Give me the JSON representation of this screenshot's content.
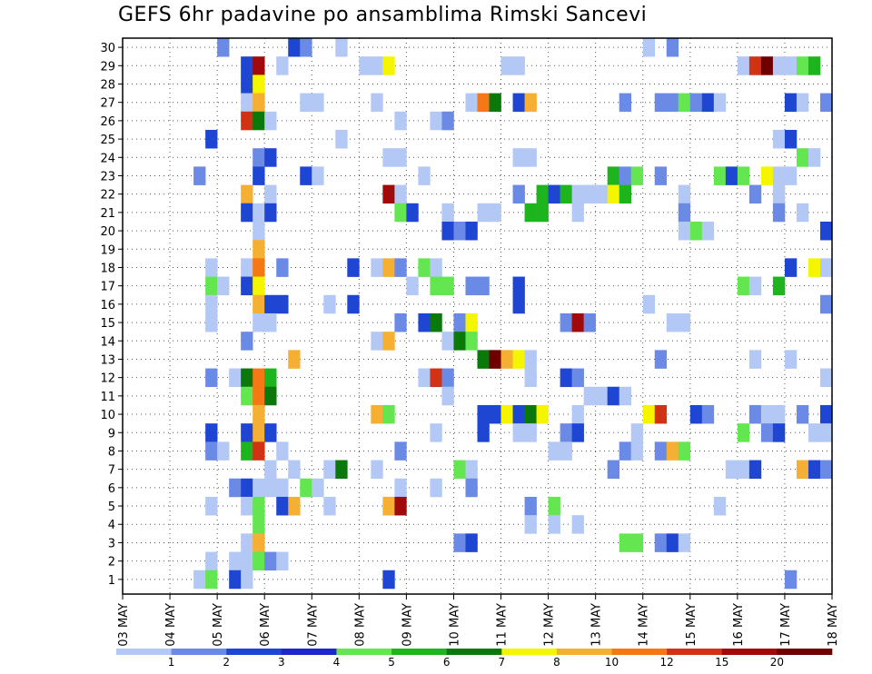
{
  "title": "GEFS 6hr padavine po ansamblima Rimski Sancevi",
  "chart_data": {
    "type": "heatmap",
    "title": "GEFS 6hr padavine po ansamblima Rimski Sancevi",
    "xlabel": "",
    "ylabel": "",
    "x_tick_labels": [
      "03 MAY",
      "04 MAY",
      "05 MAY",
      "06 MAY",
      "07 MAY",
      "08 MAY",
      "09 MAY",
      "10 MAY",
      "11 MAY",
      "12 MAY",
      "13 MAY",
      "14 MAY",
      "15 MAY",
      "16 MAY",
      "17 MAY",
      "18 MAY"
    ],
    "y_tick_labels": [
      "1",
      "2",
      "3",
      "4",
      "5",
      "6",
      "7",
      "8",
      "9",
      "10",
      "11",
      "12",
      "13",
      "14",
      "15",
      "16",
      "17",
      "18",
      "19",
      "20",
      "21",
      "22",
      "23",
      "24",
      "25",
      "26",
      "27",
      "28",
      "29",
      "30"
    ],
    "grid": true,
    "steps_per_day": 4,
    "n_steps": 60,
    "n_members": 30,
    "colorbar": {
      "labels": [
        "1",
        "2",
        "3",
        "4",
        "5",
        "6",
        "7",
        "8",
        "10",
        "12",
        "15",
        "20"
      ],
      "colors": [
        "#b4c8f5",
        "#6a8ae6",
        "#1e46d2",
        "#1e28c8",
        "#64e650",
        "#1eb41e",
        "#0a780a",
        "#f5f500",
        "#f5af32",
        "#f57814",
        "#d23214",
        "#a00a0a",
        "#6e0000"
      ]
    },
    "cells": [
      [
        30,
        8,
        2
      ],
      [
        30,
        14,
        3
      ],
      [
        30,
        15,
        2
      ],
      [
        30,
        18,
        1
      ],
      [
        30,
        44,
        1
      ],
      [
        30,
        46,
        2
      ],
      [
        29,
        10,
        3
      ],
      [
        29,
        11,
        12
      ],
      [
        29,
        13,
        1
      ],
      [
        29,
        20,
        1
      ],
      [
        29,
        21,
        1
      ],
      [
        29,
        22,
        8
      ],
      [
        29,
        32,
        1
      ],
      [
        29,
        33,
        1
      ],
      [
        29,
        52,
        1
      ],
      [
        29,
        53,
        11
      ],
      [
        29,
        54,
        13
      ],
      [
        29,
        55,
        1
      ],
      [
        29,
        56,
        1
      ],
      [
        29,
        57,
        5
      ],
      [
        29,
        58,
        6
      ],
      [
        28,
        10,
        3
      ],
      [
        28,
        11,
        8
      ],
      [
        27,
        10,
        1
      ],
      [
        27,
        11,
        9
      ],
      [
        27,
        15,
        1
      ],
      [
        27,
        16,
        1
      ],
      [
        27,
        21,
        1
      ],
      [
        27,
        29,
        1
      ],
      [
        27,
        30,
        10
      ],
      [
        27,
        31,
        7
      ],
      [
        27,
        33,
        3
      ],
      [
        27,
        34,
        9
      ],
      [
        27,
        42,
        2
      ],
      [
        27,
        45,
        2
      ],
      [
        27,
        46,
        2
      ],
      [
        27,
        47,
        5
      ],
      [
        27,
        48,
        2
      ],
      [
        27,
        49,
        3
      ],
      [
        27,
        50,
        1
      ],
      [
        27,
        56,
        3
      ],
      [
        27,
        57,
        1
      ],
      [
        27,
        59,
        2
      ],
      [
        26,
        10,
        11
      ],
      [
        26,
        11,
        7
      ],
      [
        26,
        12,
        1
      ],
      [
        26,
        23,
        1
      ],
      [
        26,
        26,
        1
      ],
      [
        26,
        27,
        2
      ],
      [
        25,
        7,
        3
      ],
      [
        25,
        18,
        1
      ],
      [
        25,
        55,
        1
      ],
      [
        25,
        56,
        3
      ],
      [
        24,
        11,
        2
      ],
      [
        24,
        12,
        3
      ],
      [
        24,
        22,
        1
      ],
      [
        24,
        23,
        1
      ],
      [
        24,
        33,
        1
      ],
      [
        24,
        34,
        1
      ],
      [
        24,
        57,
        5
      ],
      [
        24,
        58,
        1
      ],
      [
        23,
        6,
        2
      ],
      [
        23,
        11,
        3
      ],
      [
        23,
        15,
        3
      ],
      [
        23,
        16,
        1
      ],
      [
        23,
        25,
        1
      ],
      [
        23,
        41,
        6
      ],
      [
        23,
        42,
        2
      ],
      [
        23,
        43,
        5
      ],
      [
        23,
        45,
        2
      ],
      [
        23,
        50,
        5
      ],
      [
        23,
        51,
        3
      ],
      [
        23,
        52,
        5
      ],
      [
        23,
        54,
        8
      ],
      [
        23,
        55,
        1
      ],
      [
        23,
        56,
        1
      ],
      [
        22,
        10,
        9
      ],
      [
        22,
        12,
        1
      ],
      [
        22,
        22,
        12
      ],
      [
        22,
        23,
        1
      ],
      [
        22,
        33,
        2
      ],
      [
        22,
        35,
        6
      ],
      [
        22,
        36,
        3
      ],
      [
        22,
        37,
        6
      ],
      [
        22,
        38,
        1
      ],
      [
        22,
        39,
        1
      ],
      [
        22,
        40,
        1
      ],
      [
        22,
        41,
        8
      ],
      [
        22,
        42,
        6
      ],
      [
        22,
        47,
        1
      ],
      [
        22,
        53,
        2
      ],
      [
        22,
        55,
        1
      ],
      [
        21,
        10,
        3
      ],
      [
        21,
        11,
        1
      ],
      [
        21,
        12,
        3
      ],
      [
        21,
        23,
        5
      ],
      [
        21,
        24,
        3
      ],
      [
        21,
        27,
        1
      ],
      [
        21,
        30,
        1
      ],
      [
        21,
        31,
        1
      ],
      [
        21,
        34,
        6
      ],
      [
        21,
        35,
        6
      ],
      [
        21,
        38,
        1
      ],
      [
        21,
        47,
        2
      ],
      [
        21,
        55,
        2
      ],
      [
        21,
        57,
        1
      ],
      [
        20,
        11,
        1
      ],
      [
        20,
        27,
        3
      ],
      [
        20,
        28,
        2
      ],
      [
        20,
        29,
        3
      ],
      [
        20,
        47,
        1
      ],
      [
        20,
        48,
        5
      ],
      [
        20,
        49,
        1
      ],
      [
        20,
        59,
        3
      ],
      [
        19,
        11,
        9
      ],
      [
        18,
        7,
        1
      ],
      [
        18,
        10,
        1
      ],
      [
        18,
        11,
        10
      ],
      [
        18,
        13,
        2
      ],
      [
        18,
        19,
        3
      ],
      [
        18,
        21,
        1
      ],
      [
        18,
        22,
        9
      ],
      [
        18,
        23,
        2
      ],
      [
        18,
        25,
        5
      ],
      [
        18,
        26,
        1
      ],
      [
        18,
        56,
        3
      ],
      [
        18,
        58,
        8
      ],
      [
        18,
        59,
        1
      ],
      [
        17,
        7,
        5
      ],
      [
        17,
        8,
        1
      ],
      [
        17,
        10,
        3
      ],
      [
        17,
        11,
        8
      ],
      [
        17,
        24,
        1
      ],
      [
        17,
        26,
        5
      ],
      [
        17,
        27,
        5
      ],
      [
        17,
        29,
        2
      ],
      [
        17,
        30,
        2
      ],
      [
        17,
        33,
        3
      ],
      [
        17,
        52,
        5
      ],
      [
        17,
        53,
        1
      ],
      [
        17,
        55,
        6
      ],
      [
        16,
        7,
        1
      ],
      [
        16,
        11,
        9
      ],
      [
        16,
        12,
        3
      ],
      [
        16,
        13,
        3
      ],
      [
        16,
        17,
        1
      ],
      [
        16,
        19,
        3
      ],
      [
        16,
        33,
        3
      ],
      [
        16,
        44,
        1
      ],
      [
        16,
        59,
        2
      ],
      [
        15,
        7,
        1
      ],
      [
        15,
        11,
        1
      ],
      [
        15,
        12,
        1
      ],
      [
        15,
        23,
        2
      ],
      [
        15,
        25,
        3
      ],
      [
        15,
        26,
        7
      ],
      [
        15,
        28,
        2
      ],
      [
        15,
        29,
        8
      ],
      [
        15,
        37,
        2
      ],
      [
        15,
        38,
        12
      ],
      [
        15,
        39,
        2
      ],
      [
        15,
        46,
        1
      ],
      [
        15,
        47,
        1
      ],
      [
        14,
        10,
        2
      ],
      [
        14,
        21,
        1
      ],
      [
        14,
        22,
        9
      ],
      [
        14,
        27,
        1
      ],
      [
        14,
        28,
        7
      ],
      [
        14,
        29,
        5
      ],
      [
        13,
        14,
        9
      ],
      [
        13,
        30,
        7
      ],
      [
        13,
        31,
        13
      ],
      [
        13,
        32,
        9
      ],
      [
        13,
        33,
        8
      ],
      [
        13,
        34,
        1
      ],
      [
        13,
        45,
        2
      ],
      [
        13,
        53,
        1
      ],
      [
        13,
        56,
        1
      ],
      [
        12,
        7,
        2
      ],
      [
        12,
        9,
        1
      ],
      [
        12,
        10,
        7
      ],
      [
        12,
        11,
        10
      ],
      [
        12,
        12,
        6
      ],
      [
        12,
        25,
        1
      ],
      [
        12,
        26,
        11
      ],
      [
        12,
        27,
        2
      ],
      [
        12,
        34,
        1
      ],
      [
        12,
        37,
        3
      ],
      [
        12,
        38,
        2
      ],
      [
        12,
        59,
        1
      ],
      [
        11,
        10,
        5
      ],
      [
        11,
        11,
        10
      ],
      [
        11,
        12,
        7
      ],
      [
        11,
        27,
        1
      ],
      [
        11,
        39,
        1
      ],
      [
        11,
        40,
        1
      ],
      [
        11,
        41,
        3
      ],
      [
        11,
        42,
        1
      ],
      [
        10,
        11,
        9
      ],
      [
        10,
        21,
        9
      ],
      [
        10,
        22,
        5
      ],
      [
        10,
        30,
        3
      ],
      [
        10,
        31,
        3
      ],
      [
        10,
        32,
        8
      ],
      [
        10,
        33,
        3
      ],
      [
        10,
        34,
        7
      ],
      [
        10,
        35,
        8
      ],
      [
        10,
        38,
        1
      ],
      [
        10,
        44,
        8
      ],
      [
        10,
        45,
        11
      ],
      [
        10,
        48,
        3
      ],
      [
        10,
        49,
        2
      ],
      [
        10,
        53,
        2
      ],
      [
        10,
        54,
        1
      ],
      [
        10,
        55,
        1
      ],
      [
        10,
        57,
        2
      ],
      [
        10,
        59,
        3
      ],
      [
        9,
        7,
        3
      ],
      [
        9,
        10,
        3
      ],
      [
        9,
        11,
        9
      ],
      [
        9,
        12,
        3
      ],
      [
        9,
        26,
        1
      ],
      [
        9,
        30,
        3
      ],
      [
        9,
        33,
        1
      ],
      [
        9,
        34,
        1
      ],
      [
        9,
        37,
        2
      ],
      [
        9,
        38,
        3
      ],
      [
        9,
        43,
        1
      ],
      [
        9,
        52,
        5
      ],
      [
        9,
        54,
        2
      ],
      [
        9,
        55,
        3
      ],
      [
        9,
        58,
        1
      ],
      [
        9,
        59,
        1
      ],
      [
        8,
        7,
        2
      ],
      [
        8,
        8,
        1
      ],
      [
        8,
        10,
        6
      ],
      [
        8,
        11,
        11
      ],
      [
        8,
        13,
        1
      ],
      [
        8,
        23,
        2
      ],
      [
        8,
        36,
        1
      ],
      [
        8,
        37,
        1
      ],
      [
        8,
        42,
        2
      ],
      [
        8,
        43,
        1
      ],
      [
        8,
        45,
        2
      ],
      [
        8,
        46,
        9
      ],
      [
        8,
        47,
        5
      ],
      [
        7,
        12,
        1
      ],
      [
        7,
        14,
        1
      ],
      [
        7,
        17,
        1
      ],
      [
        7,
        18,
        7
      ],
      [
        7,
        21,
        1
      ],
      [
        7,
        28,
        5
      ],
      [
        7,
        29,
        1
      ],
      [
        7,
        41,
        2
      ],
      [
        7,
        51,
        1
      ],
      [
        7,
        52,
        1
      ],
      [
        7,
        53,
        3
      ],
      [
        7,
        57,
        9
      ],
      [
        7,
        58,
        3
      ],
      [
        7,
        59,
        2
      ],
      [
        6,
        9,
        2
      ],
      [
        6,
        10,
        3
      ],
      [
        6,
        11,
        1
      ],
      [
        6,
        12,
        1
      ],
      [
        6,
        13,
        1
      ],
      [
        6,
        15,
        5
      ],
      [
        6,
        16,
        1
      ],
      [
        6,
        23,
        1
      ],
      [
        6,
        26,
        1
      ],
      [
        6,
        29,
        2
      ],
      [
        5,
        7,
        1
      ],
      [
        5,
        10,
        1
      ],
      [
        5,
        11,
        5
      ],
      [
        5,
        13,
        3
      ],
      [
        5,
        14,
        9
      ],
      [
        5,
        17,
        1
      ],
      [
        5,
        22,
        9
      ],
      [
        5,
        23,
        12
      ],
      [
        5,
        34,
        2
      ],
      [
        5,
        36,
        5
      ],
      [
        5,
        50,
        1
      ],
      [
        4,
        11,
        5
      ],
      [
        4,
        34,
        1
      ],
      [
        4,
        36,
        1
      ],
      [
        4,
        38,
        1
      ],
      [
        3,
        10,
        1
      ],
      [
        3,
        11,
        9
      ],
      [
        3,
        28,
        2
      ],
      [
        3,
        29,
        3
      ],
      [
        3,
        42,
        5
      ],
      [
        3,
        43,
        5
      ],
      [
        3,
        45,
        2
      ],
      [
        3,
        46,
        3
      ],
      [
        3,
        47,
        1
      ],
      [
        2,
        7,
        1
      ],
      [
        2,
        9,
        1
      ],
      [
        2,
        10,
        1
      ],
      [
        2,
        11,
        5
      ],
      [
        2,
        12,
        2
      ],
      [
        2,
        13,
        1
      ],
      [
        1,
        6,
        1
      ],
      [
        1,
        7,
        5
      ],
      [
        1,
        9,
        3
      ],
      [
        1,
        10,
        1
      ],
      [
        1,
        22,
        3
      ],
      [
        1,
        56,
        2
      ]
    ]
  }
}
